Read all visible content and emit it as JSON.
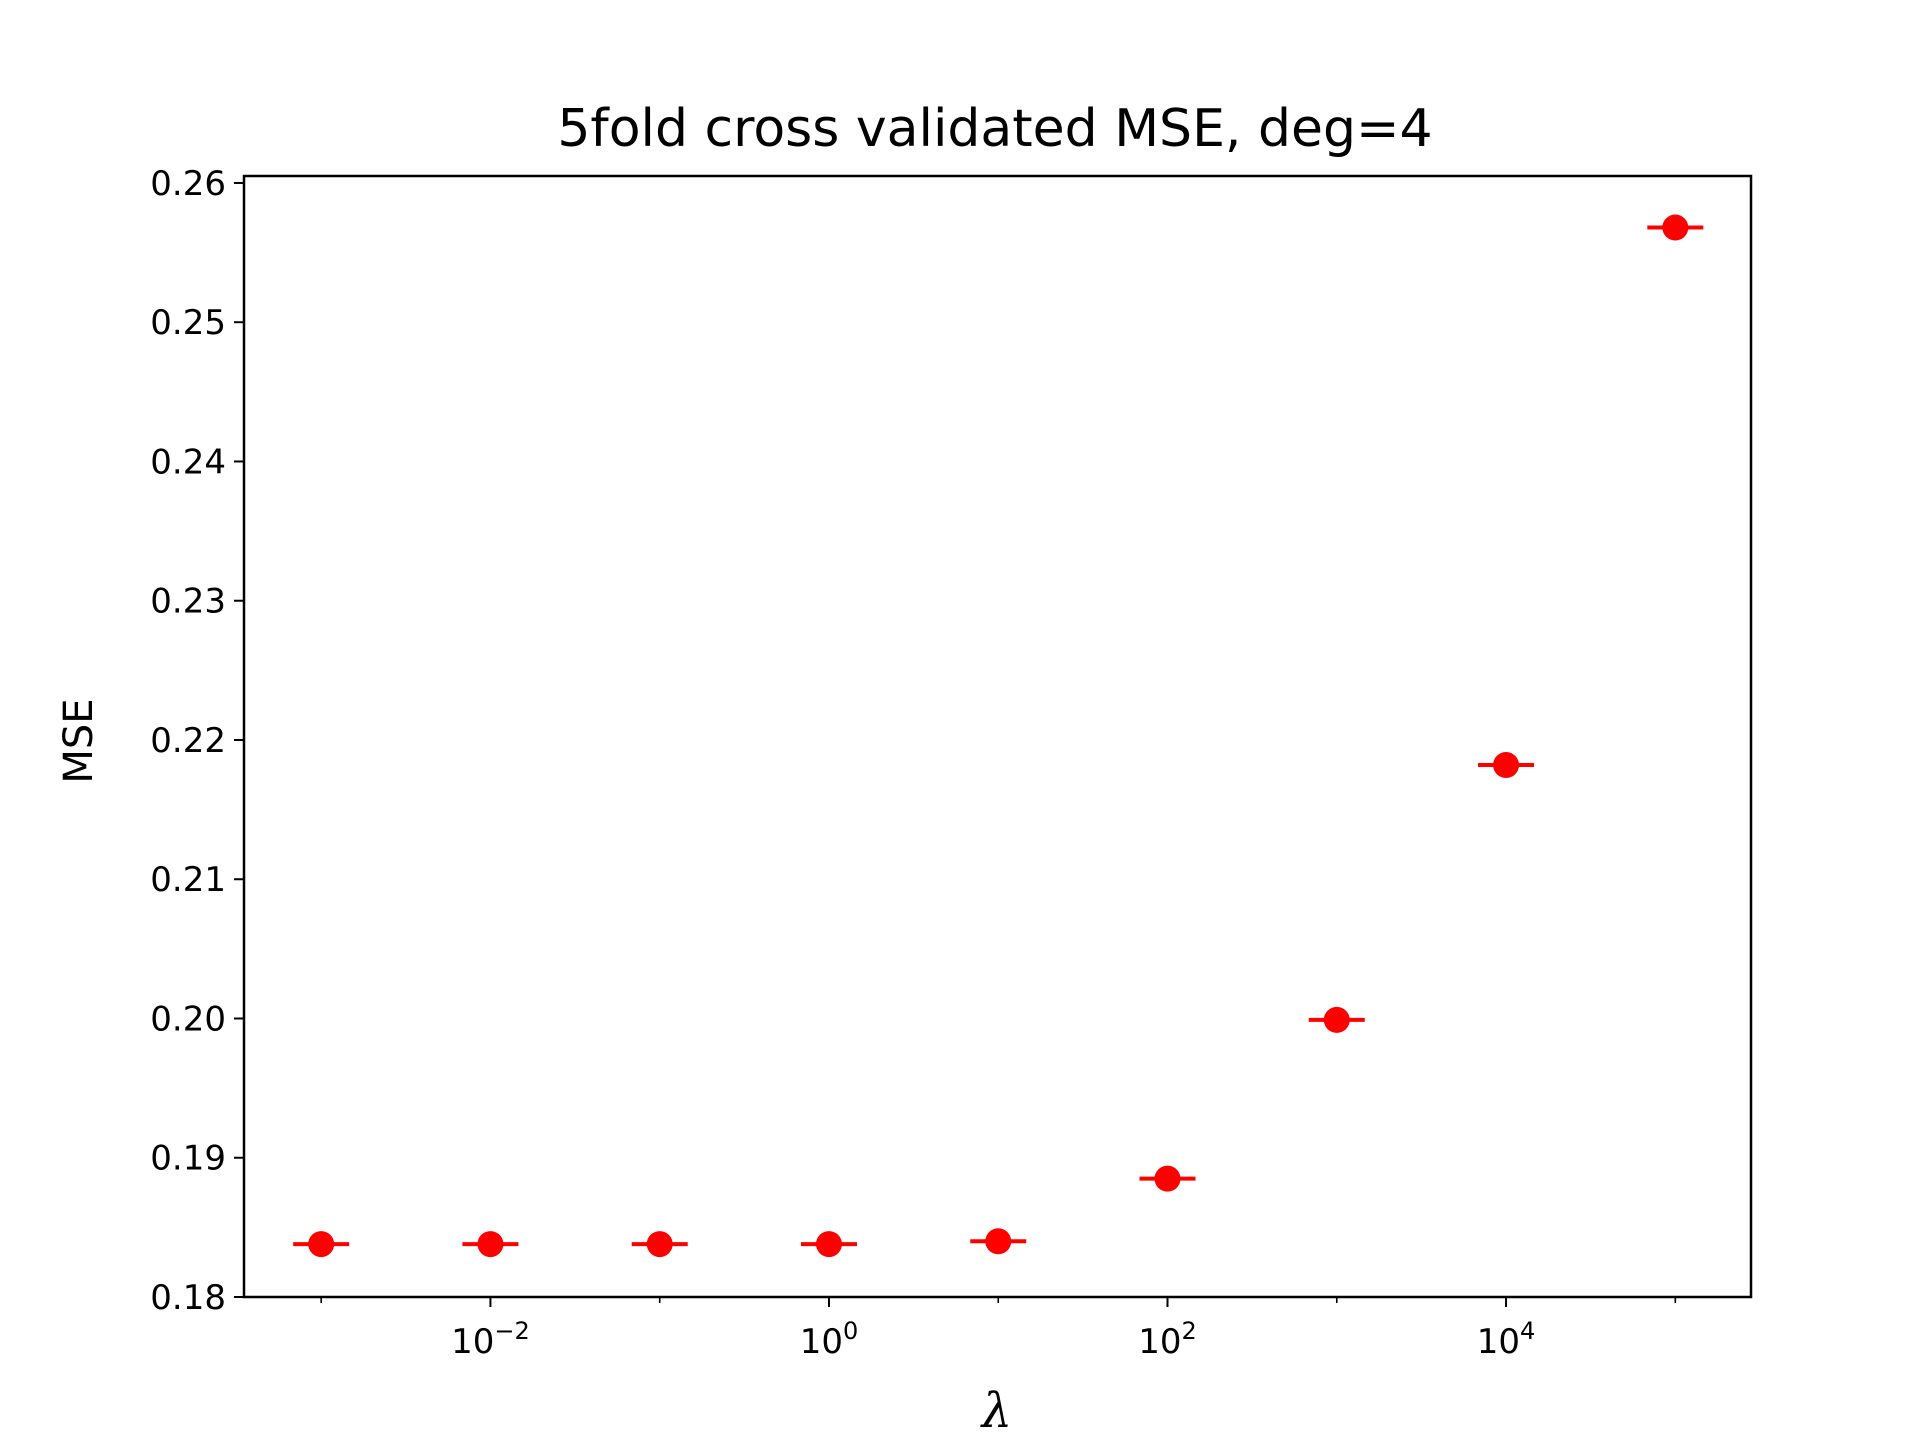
{
  "chart_data": {
    "type": "scatter",
    "title": "5fold cross validated MSE, deg=4",
    "xlabel": "λ",
    "ylabel": "MSE",
    "x_scale": "log",
    "x": [
      0.001,
      0.01,
      0.1,
      1,
      10,
      100,
      1000,
      10000,
      100000
    ],
    "y": [
      0.1838,
      0.1838,
      0.1838,
      0.1838,
      0.184,
      0.1885,
      0.1999,
      0.2182,
      0.2568
    ],
    "marker": "circle with horizontal error bar",
    "color": "#ff0000",
    "xlim": [
      0.00035,
      280000
    ],
    "ylim": [
      0.18,
      0.2605
    ],
    "x_ticks": [
      {
        "value": 0.01,
        "base": "10",
        "exp": "−2"
      },
      {
        "value": 1,
        "base": "10",
        "exp": "0"
      },
      {
        "value": 100,
        "base": "10",
        "exp": "2"
      },
      {
        "value": 10000,
        "base": "10",
        "exp": "4"
      }
    ],
    "y_ticks": [
      {
        "value": 0.18,
        "label": "0.18"
      },
      {
        "value": 0.19,
        "label": "0.19"
      },
      {
        "value": 0.2,
        "label": "0.20"
      },
      {
        "value": 0.21,
        "label": "0.21"
      },
      {
        "value": 0.22,
        "label": "0.22"
      },
      {
        "value": 0.23,
        "label": "0.23"
      },
      {
        "value": 0.24,
        "label": "0.24"
      },
      {
        "value": 0.25,
        "label": "0.25"
      },
      {
        "value": 0.26,
        "label": "0.26"
      }
    ],
    "grid": false,
    "legend": "none"
  }
}
